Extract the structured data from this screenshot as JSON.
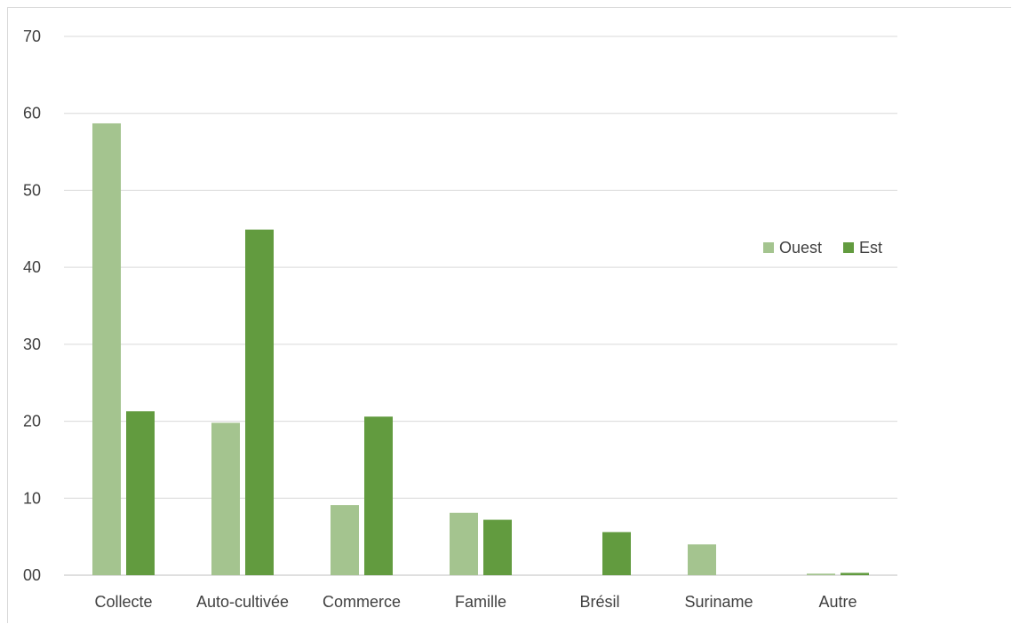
{
  "chart_data": {
    "type": "bar",
    "title": "",
    "xlabel": "",
    "ylabel": "",
    "ylim": [
      0,
      70
    ],
    "yticks": [
      0,
      10,
      20,
      30,
      40,
      50,
      60,
      70
    ],
    "ytick_labels": [
      "00",
      "10",
      "20",
      "30",
      "40",
      "50",
      "60",
      "70"
    ],
    "grid": true,
    "legend_position": "right",
    "categories": [
      "Collecte",
      "Auto-cultivée",
      "Commerce",
      "Famille",
      "Brésil",
      "Suriname",
      "Autre"
    ],
    "series": [
      {
        "name": "Ouest",
        "color": "#a4c48f",
        "values": [
          58.7,
          19.8,
          9.1,
          8.1,
          0,
          4.0,
          0.2
        ]
      },
      {
        "name": "Est",
        "color": "#629b3f",
        "values": [
          21.3,
          44.9,
          20.6,
          7.2,
          5.6,
          0,
          0.3
        ]
      }
    ]
  }
}
